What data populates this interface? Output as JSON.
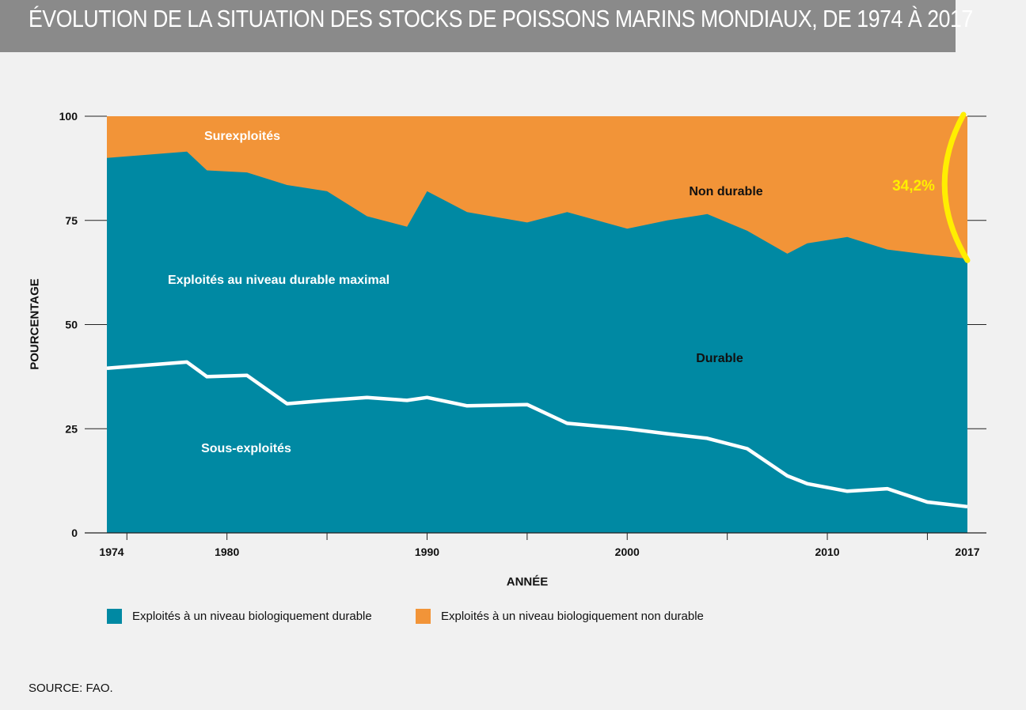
{
  "title": "ÉVOLUTION DE LA SITUATION DES STOCKS DE POISSONS MARINS MONDIAUX, DE 1974 À 2017",
  "source": "SOURCE: FAO.",
  "chart_data": {
    "type": "area",
    "xlabel": "ANNÉE",
    "ylabel": "POURCENTAGE",
    "xlim": [
      1974,
      2017
    ],
    "ylim": [
      0,
      100
    ],
    "x_ticks": [
      1974,
      1980,
      1990,
      2000,
      2010,
      2017
    ],
    "y_ticks": [
      0,
      25,
      50,
      75,
      100
    ],
    "grid": false,
    "colors": {
      "durable": "#0089a3",
      "non_durable": "#f29438",
      "sous_exploites_line": "#ffffff",
      "highlight": "#ffee00"
    },
    "series": [
      {
        "name": "Exploités à un niveau biologiquement durable",
        "x": [
          1974,
          1978,
          1979,
          1981,
          1983,
          1985,
          1987,
          1989,
          1990,
          1992,
          1995,
          1997,
          2000,
          2002,
          2004,
          2006,
          2008,
          2009,
          2011,
          2013,
          2015,
          2017
        ],
        "values": [
          90,
          91.5,
          87,
          86.5,
          83.5,
          82,
          76,
          73.5,
          82,
          77,
          74.5,
          77,
          73,
          75,
          76.5,
          72.5,
          67,
          69.5,
          71,
          68,
          66.8,
          65.8
        ]
      },
      {
        "name": "Sous-exploités",
        "x": [
          1974,
          1978,
          1979,
          1981,
          1983,
          1985,
          1987,
          1989,
          1990,
          1992,
          1995,
          1997,
          2000,
          2002,
          2004,
          2006,
          2008,
          2009,
          2011,
          2013,
          2015,
          2017
        ],
        "values": [
          39.5,
          41,
          37.5,
          37.8,
          31,
          31.8,
          32.5,
          31.8,
          32.5,
          30.5,
          30.8,
          26.3,
          25,
          23.8,
          22.7,
          20.2,
          13.7,
          11.8,
          10,
          10.6,
          7.4,
          6.3
        ]
      }
    ],
    "legend": [
      {
        "label": "Exploités à un niveau biologiquement durable",
        "color": "#0089a3"
      },
      {
        "label": "Exploités à un niveau biologiquement non durable",
        "color": "#f29438"
      }
    ],
    "legend_position": "bottom-left",
    "annotations": {
      "surexploites": "Surexploités",
      "non_durable": "Non durable",
      "exploites_max": "Exploités au niveau durable maximal",
      "durable": "Durable",
      "sous_exploites": "Sous-exploités",
      "highlight_value": "34,2%"
    }
  }
}
